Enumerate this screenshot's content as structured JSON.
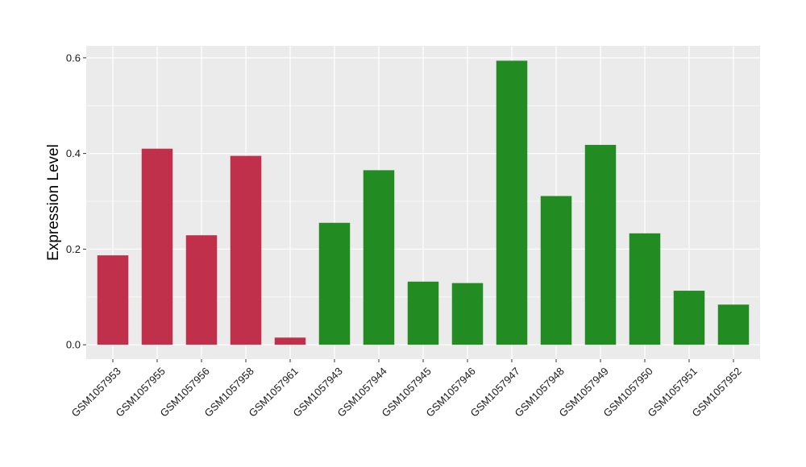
{
  "chart_data": {
    "type": "bar",
    "title": "",
    "xlabel": "",
    "ylabel": "Expression Level",
    "ylim": [
      -0.03,
      0.625
    ],
    "yticks": [
      0.0,
      0.2,
      0.4,
      0.6
    ],
    "ytick_labels": [
      "0.0",
      "0.2",
      "0.4",
      "0.6"
    ],
    "grid": true,
    "legend": "none",
    "panel_color": "#ebebeb",
    "gridline_color": "#ffffff",
    "categories": [
      "GSM1057953",
      "GSM1057955",
      "GSM1057956",
      "GSM1057958",
      "GSM1057961",
      "GSM1057943",
      "GSM1057944",
      "GSM1057945",
      "GSM1057946",
      "GSM1057947",
      "GSM1057948",
      "GSM1057949",
      "GSM1057950",
      "GSM1057951",
      "GSM1057952"
    ],
    "values": [
      0.187,
      0.41,
      0.229,
      0.395,
      0.015,
      0.255,
      0.365,
      0.132,
      0.129,
      0.594,
      0.311,
      0.418,
      0.233,
      0.113,
      0.084
    ],
    "bar_colors": [
      "#c1304a",
      "#c1304a",
      "#c1304a",
      "#c1304a",
      "#c1304a",
      "#228b22",
      "#228b22",
      "#228b22",
      "#228b22",
      "#228b22",
      "#228b22",
      "#228b22",
      "#228b22",
      "#228b22",
      "#228b22"
    ]
  }
}
